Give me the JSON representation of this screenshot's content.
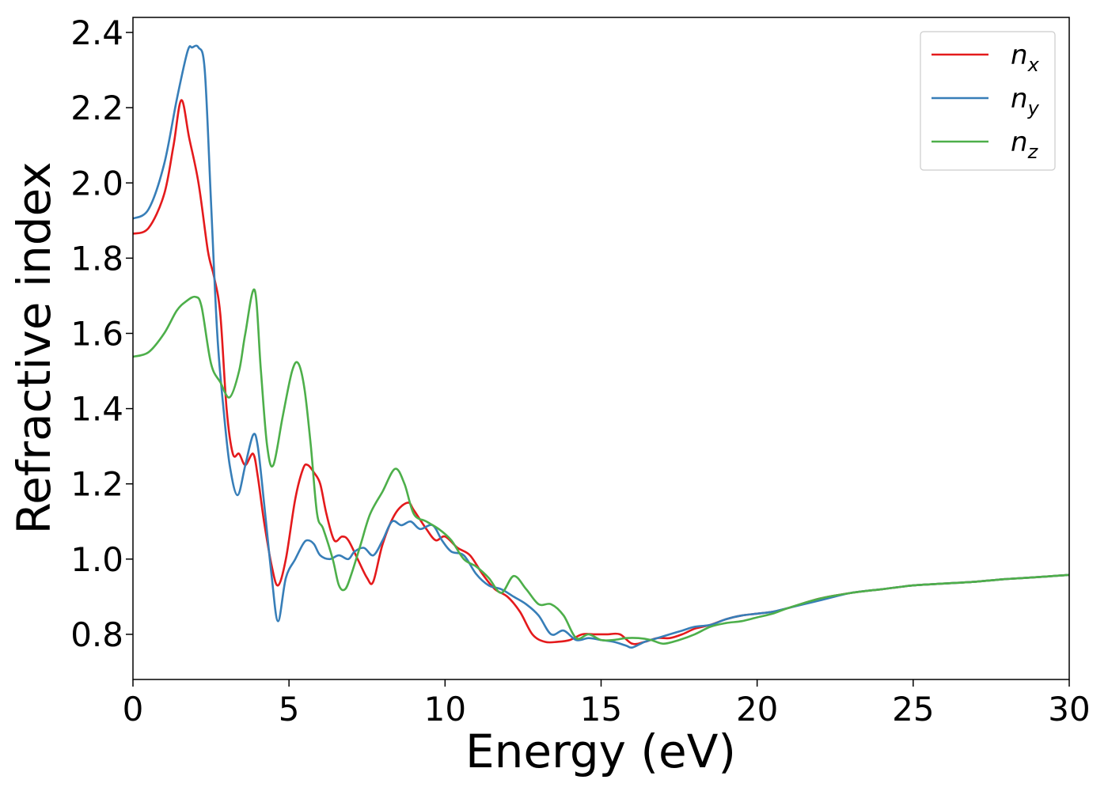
{
  "chart_data": {
    "type": "line",
    "title": "",
    "xlabel": "Energy (eV)",
    "ylabel": "Refractive index",
    "xlim": [
      0,
      30
    ],
    "ylim": [
      0.68,
      2.44
    ],
    "xticks": [
      0,
      5,
      10,
      15,
      20,
      25,
      30
    ],
    "yticks": [
      0.8,
      1.0,
      1.2,
      1.4,
      1.6,
      1.8,
      2.0,
      2.2,
      2.4
    ],
    "grid": false,
    "legend_position": "top-right",
    "series": [
      {
        "name": "n",
        "subscript": "x",
        "color": "#e41a1c",
        "x": [
          0,
          0.5,
          1.0,
          1.3,
          1.55,
          1.8,
          2.1,
          2.4,
          2.6,
          2.8,
          3.0,
          3.2,
          3.4,
          3.6,
          3.85,
          4.0,
          4.2,
          4.45,
          4.65,
          4.9,
          5.2,
          5.45,
          5.6,
          5.8,
          6.0,
          6.2,
          6.45,
          6.7,
          6.9,
          7.2,
          7.5,
          7.7,
          8.0,
          8.4,
          8.8,
          9.0,
          9.4,
          9.7,
          10.0,
          10.4,
          10.8,
          11.2,
          11.6,
          12.0,
          12.4,
          12.8,
          13.2,
          13.6,
          14.0,
          14.4,
          14.8,
          15.2,
          15.6,
          16.0,
          16.4,
          16.8,
          17.2,
          17.6,
          18.0,
          18.5,
          19.0,
          19.5,
          20.0,
          20.5,
          21.0,
          22.0,
          23.0,
          24.0,
          25.0,
          26.0,
          27.0,
          28.0,
          29.0,
          30.0
        ],
        "values": [
          1.865,
          1.88,
          1.97,
          2.1,
          2.22,
          2.12,
          2.0,
          1.82,
          1.75,
          1.65,
          1.4,
          1.28,
          1.28,
          1.25,
          1.28,
          1.22,
          1.1,
          0.98,
          0.93,
          1.0,
          1.16,
          1.24,
          1.25,
          1.23,
          1.2,
          1.12,
          1.05,
          1.06,
          1.05,
          1.0,
          0.95,
          0.94,
          1.04,
          1.12,
          1.15,
          1.13,
          1.08,
          1.05,
          1.06,
          1.03,
          1.01,
          0.96,
          0.92,
          0.9,
          0.86,
          0.8,
          0.78,
          0.78,
          0.785,
          0.8,
          0.8,
          0.8,
          0.8,
          0.775,
          0.78,
          0.79,
          0.79,
          0.8,
          0.815,
          0.825,
          0.84,
          0.85,
          0.855,
          0.86,
          0.87,
          0.895,
          0.91,
          0.92,
          0.93,
          0.935,
          0.94,
          0.947,
          0.952,
          0.958
        ]
      },
      {
        "name": "n",
        "subscript": "y",
        "color": "#377eb8",
        "x": [
          0,
          0.5,
          1.0,
          1.4,
          1.75,
          1.9,
          2.1,
          2.3,
          2.5,
          2.7,
          2.9,
          3.1,
          3.35,
          3.6,
          3.85,
          4.0,
          4.2,
          4.45,
          4.65,
          4.9,
          5.2,
          5.45,
          5.6,
          5.8,
          6.0,
          6.3,
          6.6,
          6.9,
          7.1,
          7.4,
          7.7,
          8.0,
          8.3,
          8.6,
          8.9,
          9.2,
          9.6,
          9.9,
          10.2,
          10.6,
          11.0,
          11.4,
          11.8,
          12.2,
          12.6,
          13.0,
          13.4,
          13.8,
          14.2,
          14.6,
          15.0,
          15.4,
          15.8,
          16.0,
          16.4,
          16.8,
          17.2,
          17.6,
          18.0,
          18.5,
          19.0,
          19.5,
          20.0,
          20.5,
          21.0,
          22.0,
          23.0,
          24.0,
          25.0,
          26.0,
          27.0,
          28.0,
          29.0,
          30.0
        ],
        "values": [
          1.905,
          1.93,
          2.05,
          2.22,
          2.35,
          2.36,
          2.36,
          2.3,
          1.95,
          1.6,
          1.4,
          1.25,
          1.17,
          1.25,
          1.33,
          1.3,
          1.15,
          0.95,
          0.835,
          0.95,
          1.0,
          1.04,
          1.05,
          1.04,
          1.01,
          1.0,
          1.01,
          1.0,
          1.02,
          1.03,
          1.01,
          1.05,
          1.1,
          1.09,
          1.1,
          1.08,
          1.09,
          1.05,
          1.02,
          1.01,
          0.96,
          0.93,
          0.92,
          0.9,
          0.88,
          0.85,
          0.8,
          0.81,
          0.785,
          0.79,
          0.785,
          0.78,
          0.77,
          0.765,
          0.78,
          0.79,
          0.8,
          0.81,
          0.82,
          0.825,
          0.84,
          0.85,
          0.855,
          0.86,
          0.87,
          0.89,
          0.91,
          0.92,
          0.93,
          0.935,
          0.94,
          0.947,
          0.952,
          0.958
        ]
      },
      {
        "name": "n",
        "subscript": "z",
        "color": "#4daf4a",
        "x": [
          0,
          0.5,
          1.0,
          1.4,
          1.7,
          2.0,
          2.2,
          2.5,
          2.8,
          3.1,
          3.4,
          3.6,
          3.9,
          4.1,
          4.3,
          4.5,
          4.8,
          5.1,
          5.3,
          5.5,
          5.7,
          5.9,
          6.1,
          6.4,
          6.6,
          6.8,
          7.0,
          7.3,
          7.6,
          8.0,
          8.4,
          8.7,
          9.0,
          9.4,
          9.8,
          10.2,
          10.6,
          11.0,
          11.4,
          11.8,
          12.2,
          12.6,
          13.0,
          13.4,
          13.8,
          14.2,
          14.6,
          15.0,
          15.4,
          15.8,
          16.2,
          16.6,
          17.0,
          17.5,
          18.0,
          18.5,
          19.0,
          19.5,
          20.0,
          20.5,
          21.0,
          22.0,
          23.0,
          24.0,
          25.0,
          26.0,
          27.0,
          28.0,
          29.0,
          30.0
        ],
        "values": [
          1.538,
          1.55,
          1.6,
          1.66,
          1.685,
          1.697,
          1.67,
          1.52,
          1.47,
          1.43,
          1.5,
          1.6,
          1.715,
          1.5,
          1.3,
          1.25,
          1.38,
          1.5,
          1.52,
          1.45,
          1.3,
          1.12,
          1.08,
          1.0,
          0.93,
          0.92,
          0.96,
          1.04,
          1.12,
          1.18,
          1.24,
          1.2,
          1.12,
          1.1,
          1.08,
          1.05,
          1.0,
          0.98,
          0.95,
          0.91,
          0.955,
          0.92,
          0.88,
          0.88,
          0.85,
          0.79,
          0.8,
          0.785,
          0.785,
          0.79,
          0.79,
          0.785,
          0.775,
          0.785,
          0.8,
          0.82,
          0.83,
          0.835,
          0.845,
          0.855,
          0.87,
          0.895,
          0.91,
          0.92,
          0.93,
          0.935,
          0.94,
          0.947,
          0.952,
          0.958
        ]
      }
    ]
  }
}
